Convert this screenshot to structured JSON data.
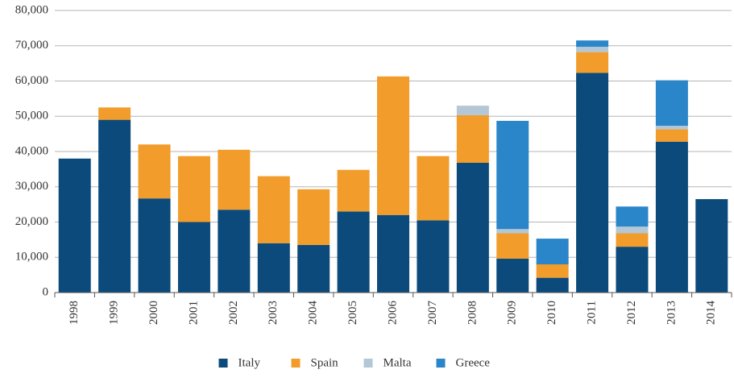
{
  "chart_data": {
    "type": "stacked_bar",
    "categories": [
      "1998",
      "1999",
      "2000",
      "2001",
      "2002",
      "2003",
      "2004",
      "2005",
      "2006",
      "2007",
      "2008",
      "2009",
      "2010",
      "2011",
      "2012",
      "2013",
      "2014"
    ],
    "series": [
      {
        "name": "Italy",
        "color": "#0b4a7a",
        "values": [
          38000,
          49000,
          26700,
          20000,
          23500,
          14000,
          13500,
          23000,
          22000,
          20500,
          36800,
          9600,
          4200,
          62300,
          13000,
          42800,
          26500
        ]
      },
      {
        "name": "Spain",
        "color": "#f29c2b",
        "values": [
          0,
          3500,
          15300,
          18700,
          17000,
          19000,
          15800,
          11800,
          39300,
          18200,
          13500,
          7200,
          3800,
          5900,
          3800,
          3500,
          0
        ]
      },
      {
        "name": "Malta",
        "color": "#b3c7d6",
        "values": [
          0,
          0,
          0,
          0,
          0,
          0,
          0,
          0,
          0,
          0,
          2700,
          1200,
          0,
          1500,
          1900,
          1000,
          0
        ]
      },
      {
        "name": "Greece",
        "color": "#2b86c9",
        "values": [
          0,
          0,
          0,
          0,
          0,
          0,
          0,
          0,
          0,
          0,
          0,
          30700,
          7300,
          1800,
          5700,
          12900,
          0
        ]
      }
    ],
    "ylim": [
      0,
      80000
    ],
    "yticks": [
      0,
      {
        "value": 10000,
        "label": "10,000"
      },
      {
        "value": 20000,
        "label": "20,000"
      },
      {
        "value": 30000,
        "label": "30,000"
      },
      {
        "value": 40000,
        "label": "40,000"
      },
      {
        "value": 50000,
        "label": "50,000"
      },
      {
        "value": 60000,
        "label": "60,000"
      },
      {
        "value": 70000,
        "label": "70,000"
      },
      {
        "value": 80000,
        "label": "80,000"
      }
    ],
    "grid": true,
    "legend": "bottom"
  }
}
